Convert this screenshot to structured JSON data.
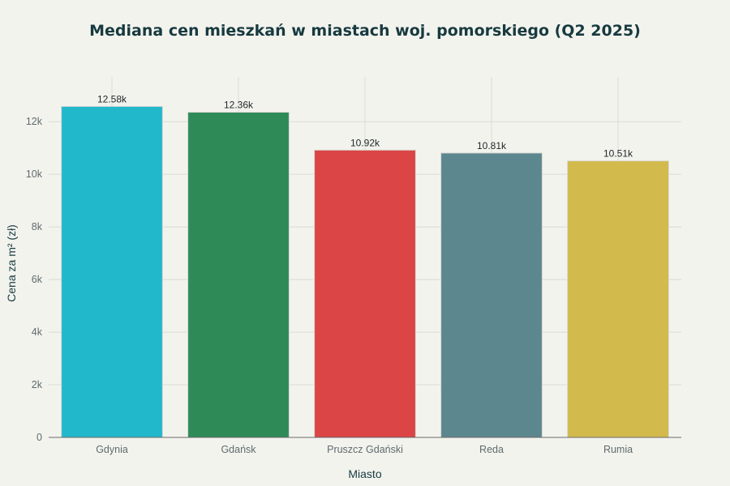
{
  "chart_data": {
    "type": "bar",
    "title": "Mediana cen mieszkań w miastach woj. pomorskiego (Q2 2025)",
    "xlabel": "Miasto",
    "ylabel": "Cena za m² (zł)",
    "categories": [
      "Gdynia",
      "Gdańsk",
      "Pruszcz Gdański",
      "Reda",
      "Rumia"
    ],
    "values": [
      12580,
      12360,
      10920,
      10810,
      10510
    ],
    "data_labels": [
      "12.58k",
      "12.36k",
      "10.92k",
      "10.81k",
      "10.51k"
    ],
    "colors": [
      "#21b8cc",
      "#2e8b57",
      "#db4545",
      "#5d878f",
      "#d2ba4c"
    ],
    "ylim": [
      0,
      13700
    ],
    "yticks": [
      0,
      2000,
      4000,
      6000,
      8000,
      10000,
      12000
    ],
    "ytick_labels": [
      "0",
      "2k",
      "4k",
      "6k",
      "8k",
      "10k",
      "12k"
    ],
    "grid": true,
    "legend": "none"
  }
}
